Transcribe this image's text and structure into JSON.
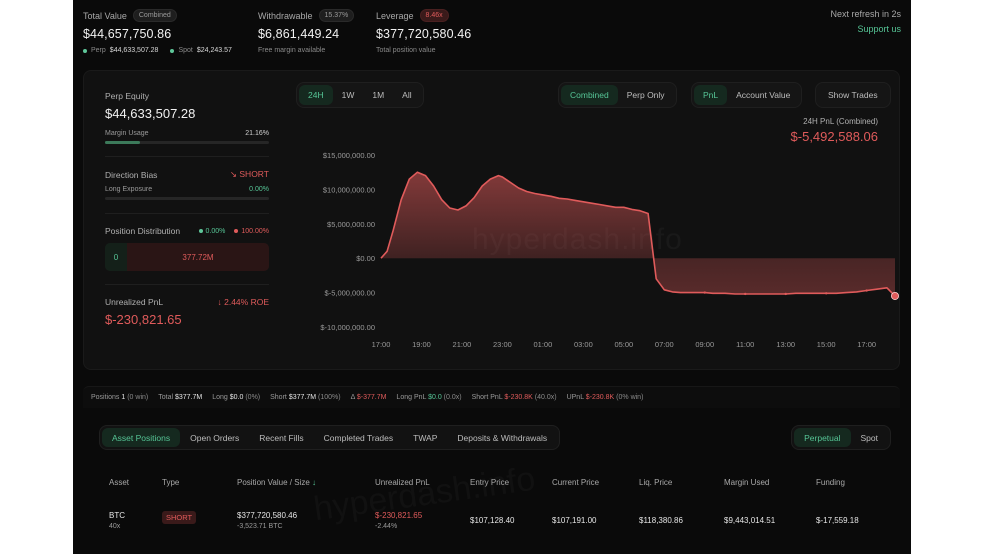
{
  "summary": {
    "total_value": {
      "label": "Total Value",
      "pill": "Combined",
      "value": "$44,657,750.86",
      "perp_label": "Perp",
      "perp_value": "$44,633,507.28",
      "spot_label": "Spot",
      "spot_value": "$24,243.57"
    },
    "withdrawable": {
      "label": "Withdrawable",
      "pill": "15.37%",
      "value": "$6,861,449.24",
      "sub": "Free margin available"
    },
    "leverage": {
      "label": "Leverage",
      "pill": "8.46x",
      "value": "$377,720,580.46",
      "sub": "Total position value"
    },
    "refresh": "Next refresh in 2s",
    "support": "Support us"
  },
  "left": {
    "perp_equity_label": "Perp Equity",
    "perp_equity": "$44,633,507.28",
    "margin_usage_label": "Margin Usage",
    "margin_usage": "21.16%",
    "margin_usage_fraction": 0.2116,
    "direction_label": "Direction Bias",
    "direction": "SHORT",
    "long_exposure_label": "Long Exposure",
    "long_exposure": "0.00%",
    "dist_label": "Position Distribution",
    "dist_long": "0.00%",
    "dist_short": "100.00%",
    "dist_long_value": "0",
    "dist_short_value": "377.72M",
    "upnl_label": "Unrealized PnL",
    "roe": "2.44% ROE",
    "upnl": "$-230,821.65"
  },
  "controls": {
    "ranges": [
      "24H",
      "1W",
      "1M",
      "All"
    ],
    "views": [
      "Combined",
      "Perp Only"
    ],
    "metrics": [
      "PnL",
      "Account Value"
    ],
    "show_trades": "Show Trades"
  },
  "pnl_title": "24H PnL (Combined)",
  "pnl_value": "$-5,492,588.06",
  "watermark": "hyperdash.info",
  "chart_data": {
    "type": "area",
    "x_ticks": [
      "17:00",
      "19:00",
      "21:00",
      "23:00",
      "01:00",
      "03:00",
      "05:00",
      "07:00",
      "09:00",
      "11:00",
      "13:00",
      "15:00",
      "17:00"
    ],
    "y_ticks": [
      "$15,000,000.00",
      "$10,000,000.00",
      "$5,000,000.00",
      "$0.00",
      "$-5,000,000.00",
      "$-10,000,000.00"
    ],
    "ylim": [
      -10000000,
      15000000
    ],
    "points_hours": [
      0,
      0.3,
      0.6,
      1,
      1.4,
      1.8,
      2.2,
      2.6,
      3,
      3.4,
      3.8,
      4.2,
      4.6,
      5,
      5.4,
      5.8,
      6,
      6.4,
      6.8,
      7.2,
      7.6,
      8,
      8.4,
      8.8,
      9.2,
      9.6,
      10,
      10.4,
      10.8,
      11.2,
      11.6,
      12,
      12.4,
      12.8,
      13.2,
      13.6,
      14,
      14.4,
      14.8,
      15.2,
      15.6,
      16,
      16.4,
      16.8,
      17,
      17.5,
      18,
      18.5,
      19,
      19.5,
      20,
      20.5,
      21,
      21.5,
      22,
      22.5,
      23,
      23.5,
      24,
      24.5,
      25,
      25.4
    ],
    "values_m": [
      0,
      1,
      4,
      8.5,
      11.5,
      12.5,
      12,
      10.5,
      8.5,
      7.3,
      7,
      7.6,
      8.8,
      10.5,
      11.5,
      12,
      11.8,
      11,
      10.2,
      9.7,
      9.4,
      9.2,
      9,
      8.7,
      8.6,
      8.4,
      8.2,
      8,
      7.8,
      7.6,
      7.4,
      7.4,
      7.1,
      6.9,
      6.5,
      -3,
      -4.6,
      -4.9,
      -5,
      -5,
      -5,
      -5,
      -5.1,
      -5.1,
      -5.1,
      -5.2,
      -5.2,
      -5.2,
      -5.2,
      -5.2,
      -5.2,
      -5.1,
      -5.1,
      -5.1,
      -5.1,
      -5.1,
      -5,
      -4.9,
      -4.7,
      -4.5,
      -4.3,
      -5.49
    ],
    "color": "#e05b5b"
  },
  "strip": {
    "positions_label": "Positions",
    "positions": "1",
    "positions_win": "(0 win)",
    "total_label": "Total",
    "total": "$377.7M",
    "long_label": "Long",
    "long": "$0.0",
    "long_pct": "(0%)",
    "short_label": "Short",
    "short": "$377.7M",
    "short_pct": "(100%)",
    "delta_label": "Δ",
    "delta": "$-377.7M",
    "long_pnl_label": "Long PnL",
    "long_pnl": "$0.0",
    "long_pnl_x": "(0.0x)",
    "short_pnl_label": "Short PnL",
    "short_pnl": "$-230.8K",
    "short_pnl_x": "(40.0x)",
    "upnl_label": "UPnL",
    "upnl": "$-230.8K",
    "upnl_win": "(0% win)"
  },
  "tabs": [
    "Asset Positions",
    "Open Orders",
    "Recent Fills",
    "Completed Trades",
    "TWAP",
    "Deposits & Withdrawals"
  ],
  "market_tabs": [
    "Perpetual",
    "Spot"
  ],
  "table": {
    "headers": [
      "Asset",
      "Type",
      "Position Value / Size",
      "Unrealized PnL",
      "Entry Price",
      "Current Price",
      "Liq. Price",
      "Margin Used",
      "Funding"
    ],
    "row": {
      "asset": "BTC",
      "leverage": "40x",
      "type": "SHORT",
      "value": "$377,720,580.46",
      "size": "-3,523.71 BTC",
      "upnl": "$-230,821.65",
      "upnl_pct": "-2.44%",
      "entry": "$107,128.40",
      "current": "$107,191.00",
      "liq": "$118,380.86",
      "margin": "$9,443,014.51",
      "funding": "$-17,559.18"
    }
  }
}
